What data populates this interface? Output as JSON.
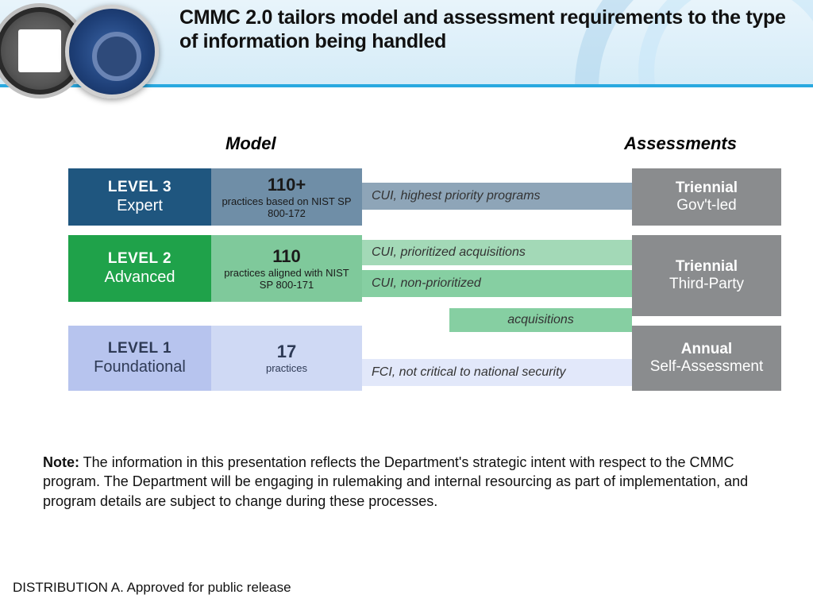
{
  "header": {
    "title": "CMMC 2.0 tailors model and assessment requirements to the type of information being handled",
    "band_bg_top": "#e8f4fb",
    "band_bg_bottom": "#d5ecf8",
    "band_border": "#2aa9e0"
  },
  "columns": {
    "model_label": "Model",
    "assessments_label": "Assessments"
  },
  "levels": [
    {
      "id": "level3",
      "level_label": "LEVEL 3",
      "level_sub": "Expert",
      "level_bg": "#1f567f",
      "level_text": "#ffffff",
      "practices_num": "110+",
      "practices_text": "practices based on NIST SP 800-172",
      "practices_bg": "#6f8ea7",
      "practices_text_color": "#1a1a1a",
      "connectors": [
        {
          "label": "CUI, highest priority programs",
          "bg": "#8ea5b8",
          "kind": "single"
        }
      ],
      "assessment_line1": "Triennial",
      "assessment_line2": "Gov't-led",
      "assessment_bg": "#8a8c8e"
    },
    {
      "id": "level2",
      "level_label": "LEVEL 2",
      "level_sub": "Advanced",
      "level_bg": "#1fa24a",
      "level_text": "#ffffff",
      "practices_num": "110",
      "practices_text": "practices aligned with NIST SP 800-171",
      "practices_bg": "#7fc99b",
      "practices_text_color": "#1a1a1a",
      "connectors": [
        {
          "label": "CUI, prioritized acquisitions",
          "bg": "#a3d9b7",
          "kind": "top"
        },
        {
          "label": "CUI, non-prioritized",
          "bg": "#86cfa2",
          "kind": "bottom"
        }
      ],
      "overflow_connector": {
        "label": "acquisitions",
        "bg": "#86cfa2"
      },
      "assessment_line1": "Triennial",
      "assessment_line2": "Third-Party",
      "assessment_bg": "#8a8c8e"
    },
    {
      "id": "level1",
      "level_label": "LEVEL 1",
      "level_sub": "Foundational",
      "level_bg": "#b7c4ee",
      "level_text": "#2e3a55",
      "practices_num": "17",
      "practices_text": "practices",
      "practices_bg": "#cfd9f4",
      "practices_text_color": "#2e3a55",
      "connectors": [
        {
          "label": "FCI, not critical to national security",
          "bg": "#e2e8fa",
          "kind": "single-low"
        }
      ],
      "assessment_line1": "Annual",
      "assessment_line2": "Self-Assessment",
      "assessment_bg": "#8a8c8e"
    }
  ],
  "note": {
    "prefix": "Note:",
    "body": " The information in this presentation reflects the Department's strategic intent with respect to the CMMC program. The Department will be engaging in rulemaking and internal resourcing as part of implementation, and program details are subject to change during these processes."
  },
  "footer": "DISTRIBUTION A.  Approved for public release"
}
